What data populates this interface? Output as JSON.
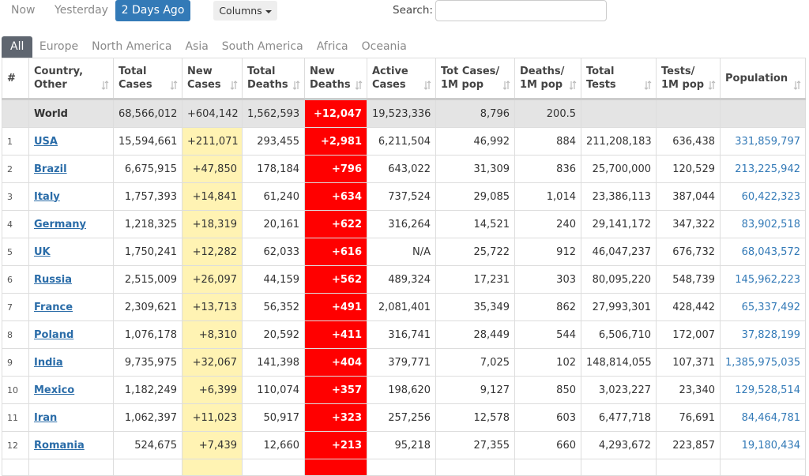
{
  "top_tabs": [
    "Now",
    "Yesterday",
    "2 Days Ago"
  ],
  "columns_button": "Columns",
  "search_label": "Search:",
  "region_tabs": [
    "All",
    "Europe",
    "North America",
    "Asia",
    "South America",
    "Africa",
    "Oceania"
  ],
  "table": {
    "headers": [
      [
        "#"
      ],
      [
        "Country,",
        "Other"
      ],
      [
        "Total",
        "Cases"
      ],
      [
        "New",
        "Cases"
      ],
      [
        "Total",
        "Deaths"
      ],
      [
        "New",
        "Deaths"
      ],
      [
        "Active",
        "Cases"
      ],
      [
        "Tot Cases/",
        "1M pop"
      ],
      [
        "Deaths/",
        "1M pop"
      ],
      [
        "Total",
        "Tests"
      ],
      [
        "Tests/",
        "1M pop"
      ],
      [
        "Population"
      ]
    ],
    "world": [
      null,
      "World",
      "68,566,012",
      "+604,142",
      "1,562,593",
      "+12,047",
      "19,523,336",
      "8,796",
      "200.5",
      null,
      null,
      null
    ],
    "rows": [
      [
        "1",
        "USA",
        "15,594,661",
        "+211,071",
        "293,455",
        "+2,981",
        "6,211,504",
        "46,992",
        "884",
        "211,208,183",
        "636,438",
        "331,859,797"
      ],
      [
        "2",
        "Brazil",
        "6,675,915",
        "+47,850",
        "178,184",
        "+796",
        "643,022",
        "31,309",
        "836",
        "25,700,000",
        "120,529",
        "213,225,942"
      ],
      [
        "3",
        "Italy",
        "1,757,393",
        "+14,841",
        "61,240",
        "+634",
        "737,524",
        "29,085",
        "1,014",
        "23,386,113",
        "387,044",
        "60,422,323"
      ],
      [
        "4",
        "Germany",
        "1,218,325",
        "+18,319",
        "20,161",
        "+622",
        "316,264",
        "14,521",
        "240",
        "29,141,172",
        "347,322",
        "83,902,518"
      ],
      [
        "5",
        "UK",
        "1,750,241",
        "+12,282",
        "62,033",
        "+616",
        "N/A",
        "25,722",
        "912",
        "46,047,237",
        "676,732",
        "68,043,572"
      ],
      [
        "6",
        "Russia",
        "2,515,009",
        "+26,097",
        "44,159",
        "+562",
        "489,324",
        "17,231",
        "303",
        "80,095,220",
        "548,739",
        "145,962,223"
      ],
      [
        "7",
        "France",
        "2,309,621",
        "+13,713",
        "56,352",
        "+491",
        "2,081,401",
        "35,349",
        "862",
        "27,993,301",
        "428,442",
        "65,337,492"
      ],
      [
        "8",
        "Poland",
        "1,076,178",
        "+8,310",
        "20,592",
        "+411",
        "316,741",
        "28,449",
        "544",
        "6,506,710",
        "172,007",
        "37,828,199"
      ],
      [
        "9",
        "India",
        "9,735,975",
        "+32,067",
        "141,398",
        "+404",
        "379,771",
        "7,025",
        "102",
        "148,814,055",
        "107,371",
        "1,385,975,035"
      ],
      [
        "10",
        "Mexico",
        "1,182,249",
        "+6,399",
        "110,074",
        "+357",
        "198,620",
        "9,127",
        "850",
        "3,023,227",
        "23,340",
        "129,528,514"
      ],
      [
        "11",
        "Iran",
        "1,062,397",
        "+11,023",
        "50,917",
        "+323",
        "257,256",
        "12,578",
        "603",
        "6,477,718",
        "76,691",
        "84,464,781"
      ],
      [
        "12",
        "Romania",
        "524,675",
        "+7,439",
        "12,660",
        "+213",
        "95,218",
        "27,355",
        "660",
        "4,293,672",
        "223,857",
        "19,180,434"
      ]
    ]
  }
}
